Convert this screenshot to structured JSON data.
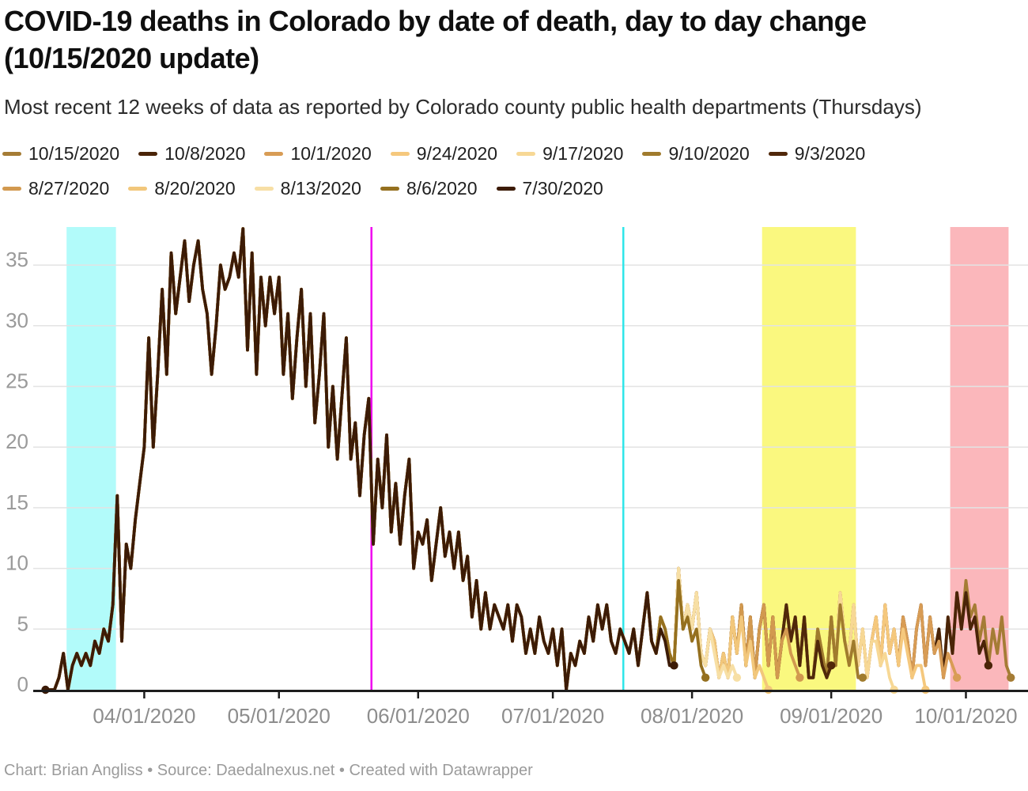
{
  "header": {
    "title": "COVID-19 deaths in Colorado by date of death, day to day change (10/15/2020 update)",
    "subtitle": "Most recent 12 weeks of data as reported by Colorado county public health departments (Thursdays)"
  },
  "footer": {
    "text": "Chart: Brian Angliss • Source: Daedalnexus.net • Created with Datawrapper"
  },
  "chart_data": {
    "type": "line",
    "title": "COVID-19 deaths in Colorado by date of death, day to day change (10/15/2020 update)",
    "xlabel": "",
    "ylabel": "",
    "ylim": [
      0,
      38.5
    ],
    "grid": true,
    "legend_position": "top",
    "y_ticks": [
      0,
      5,
      10,
      15,
      20,
      25,
      30,
      35
    ],
    "x_ticks": [
      {
        "label": "04/01/2020",
        "day": 22
      },
      {
        "label": "05/01/2020",
        "day": 52
      },
      {
        "label": "06/01/2020",
        "day": 83
      },
      {
        "label": "07/01/2020",
        "day": 113
      },
      {
        "label": "08/01/2020",
        "day": 144
      },
      {
        "label": "09/01/2020",
        "day": 175
      },
      {
        "label": "10/01/2020",
        "day": 205
      }
    ],
    "base": [
      0,
      0,
      0,
      1,
      3,
      0,
      2,
      3,
      2,
      3,
      2,
      4,
      3,
      5,
      4,
      7,
      16,
      4,
      12,
      10,
      14,
      17,
      20,
      29,
      20,
      26,
      33,
      26,
      36,
      31,
      34,
      37,
      32,
      35,
      37,
      33,
      31,
      26,
      30,
      35,
      33,
      34,
      36,
      34,
      38,
      28,
      36,
      26,
      34,
      30,
      34,
      31,
      34,
      26,
      31,
      24,
      29,
      33,
      25,
      31,
      22,
      26,
      31,
      20,
      25,
      19,
      24,
      29,
      19,
      22,
      16,
      21,
      24,
      12,
      19,
      15,
      21,
      13,
      17,
      12,
      16,
      19,
      10,
      13,
      12,
      14,
      9,
      12,
      15,
      11,
      13,
      10,
      13,
      9,
      11,
      6,
      9,
      5,
      8,
      5,
      7,
      6,
      5,
      7,
      4,
      7,
      6,
      3,
      5,
      3,
      6,
      4,
      3,
      5,
      2,
      5,
      0,
      3,
      2,
      4,
      3,
      6,
      4,
      7,
      5,
      7,
      4,
      3,
      5,
      4,
      3,
      5,
      2,
      5,
      8,
      4,
      3,
      6,
      5,
      3,
      2,
      10,
      5,
      7,
      5,
      8,
      3,
      2,
      5,
      4,
      1,
      3,
      1,
      6,
      3,
      7,
      2,
      6,
      1,
      5,
      7,
      2,
      6,
      1,
      4,
      7,
      4,
      6,
      2,
      6,
      1,
      1,
      5,
      3,
      1,
      6,
      2,
      8,
      4,
      3,
      7,
      2,
      5,
      1,
      4,
      6,
      2,
      7,
      3,
      5,
      2,
      6,
      4,
      1,
      5,
      7,
      2,
      6,
      3,
      5,
      1,
      6,
      3,
      8,
      5,
      9,
      6,
      7,
      4,
      6,
      2,
      5,
      3,
      6,
      2,
      4,
      1,
      3,
      2,
      1
    ],
    "series": [
      {
        "name": "10/15/2020",
        "color": "#A57C35",
        "end_day": 215,
        "tail": [
          4,
          6,
          2,
          5,
          3,
          6,
          2,
          1
        ]
      },
      {
        "name": "10/8/2020",
        "color": "#4A2408",
        "end_day": 210,
        "tail": [
          8,
          5,
          8,
          5,
          6,
          3,
          4,
          2
        ]
      },
      {
        "name": "10/1/2020",
        "color": "#D89C55",
        "end_day": 203,
        "tail": [
          2,
          6,
          3,
          4,
          1,
          3,
          2,
          1
        ]
      },
      {
        "name": "9/24/2020",
        "color": "#F5C87D",
        "end_day": 196,
        "tail": [
          5,
          2,
          5,
          3,
          1,
          2,
          2,
          0
        ]
      },
      {
        "name": "9/17/2020",
        "color": "#F7D895",
        "end_day": 189,
        "tail": [
          5,
          1,
          4,
          4,
          2,
          3,
          1,
          0
        ]
      },
      {
        "name": "9/10/2020",
        "color": "#A07B2D",
        "end_day": 182,
        "tail": [
          6,
          2,
          7,
          4,
          2,
          4,
          1,
          1
        ]
      },
      {
        "name": "9/3/2020",
        "color": "#50280A",
        "end_day": 175,
        "tail": [
          2,
          6,
          1,
          1,
          4,
          2,
          1,
          2
        ]
      },
      {
        "name": "8/27/2020",
        "color": "#D2994F",
        "end_day": 168,
        "tail": [
          2,
          6,
          1,
          4,
          5,
          3,
          2,
          1
        ]
      },
      {
        "name": "8/20/2020",
        "color": "#F2C77B",
        "end_day": 161,
        "tail": [
          3,
          6,
          2,
          4,
          1,
          2,
          1,
          0
        ]
      },
      {
        "name": "8/13/2020",
        "color": "#F7DFA5",
        "end_day": 154,
        "tail": [
          2,
          5,
          3,
          1,
          2,
          1,
          2,
          1
        ]
      },
      {
        "name": "8/6/2020",
        "color": "#95701F",
        "end_day": 147,
        "tail": [
          2,
          9,
          5,
          6,
          4,
          5,
          2,
          1
        ]
      },
      {
        "name": "7/30/2020",
        "color": "#3C1B06",
        "end_day": 140,
        "tail": [
          5,
          8,
          4,
          3,
          5,
          4,
          2,
          2
        ]
      }
    ],
    "bands": [
      {
        "name": "highlight-late-march",
        "color": "#B2FBFA",
        "from_day": 4.7,
        "to_day": 15.7
      },
      {
        "name": "highlight-late-august",
        "color": "#FAF87F",
        "from_day": 159.6,
        "to_day": 180.5
      },
      {
        "name": "highlight-early-october",
        "color": "#FBB7BB",
        "from_day": 201.5,
        "to_day": 214.5
      }
    ],
    "vlines": [
      {
        "name": "vline-late-may",
        "color": "#EF00EF",
        "day": 72.6
      },
      {
        "name": "vline-mid-july",
        "color": "#2FE6E9",
        "day": 128.7
      }
    ]
  }
}
